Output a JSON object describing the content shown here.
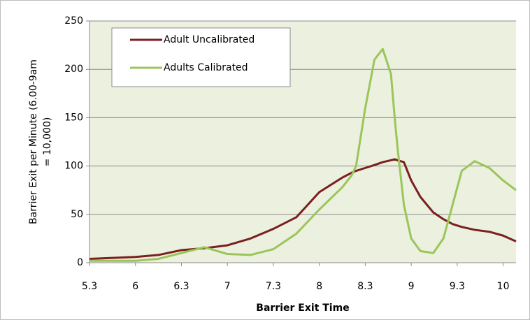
{
  "chart_data": {
    "type": "line",
    "x_label": "Barrier Exit Time",
    "y_label": [
      "Barrier Exit per Minute (6.00-9am",
      "= 10,000)"
    ],
    "x": [
      5.5,
      6,
      6.25,
      6.5,
      6.75,
      7,
      7.25,
      7.5,
      7.75,
      8,
      8.25,
      8.35,
      8.4,
      8.5,
      8.6,
      8.69,
      8.78,
      8.82,
      8.85,
      8.92,
      9,
      9.1,
      9.24,
      9.35,
      9.45,
      9.55,
      9.69,
      9.85,
      10,
      10.14
    ],
    "series": [
      {
        "name": "Adult Uncalibrated",
        "color": "#7b1f1f",
        "values": [
          4,
          6,
          8,
          13,
          15,
          18,
          25,
          35,
          47,
          73,
          88,
          93,
          95,
          98,
          101,
          104,
          106,
          107,
          106,
          104,
          85,
          68,
          52,
          45,
          40,
          37,
          34,
          32,
          28,
          22
        ]
      },
      {
        "name": "Adults Calibrated",
        "color": "#9bc55a",
        "values": [
          2,
          2,
          4,
          10,
          16,
          9,
          8,
          14,
          30,
          55,
          78,
          90,
          100,
          160,
          210,
          221,
          195,
          150,
          120,
          60,
          25,
          12,
          10,
          25,
          60,
          95,
          105,
          98,
          85,
          75
        ]
      }
    ],
    "xlim": [
      5.5,
      10.14
    ],
    "xticks": [
      {
        "value": 5.5,
        "label": "5.3"
      },
      6,
      {
        "value": 6.5,
        "label": "6.3"
      },
      7,
      {
        "value": 7.5,
        "label": "7.3"
      },
      8,
      {
        "value": 8.5,
        "label": "8.3"
      },
      9,
      {
        "value": 9.5,
        "label": "9.3"
      },
      10
    ],
    "ylim": [
      0,
      250
    ],
    "yticks": [
      0,
      50,
      100,
      150,
      200,
      250
    ],
    "grid": true,
    "legend": "upper-left",
    "background": "#ebf1de"
  }
}
